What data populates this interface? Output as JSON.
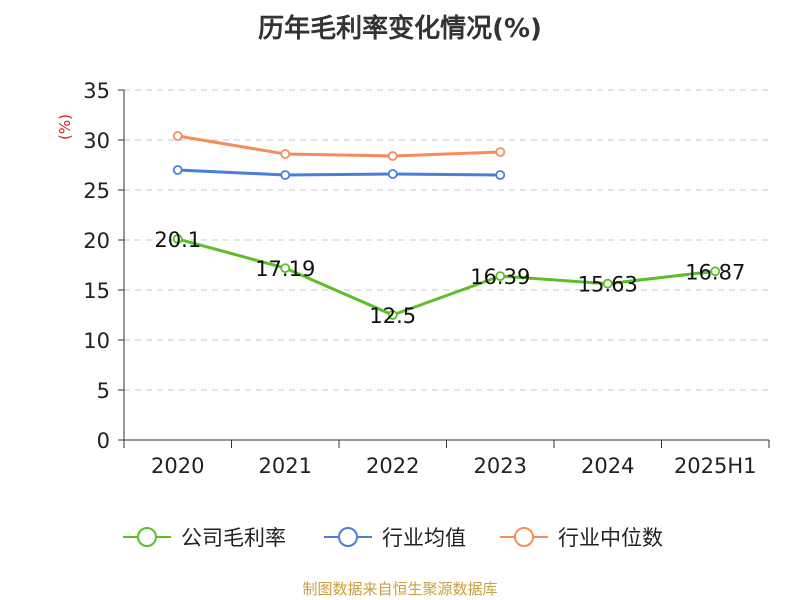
{
  "chart_data": {
    "type": "line",
    "title": "历年毛利率变化情况(%)",
    "ylabel": "(%)",
    "xlabel": "",
    "categories": [
      "2020",
      "2021",
      "2022",
      "2023",
      "2024",
      "2025H1"
    ],
    "ylim": [
      0,
      35
    ],
    "yticks": [
      0,
      5,
      10,
      15,
      20,
      25,
      30,
      35
    ],
    "grid": true,
    "legend_position": "bottom",
    "series": [
      {
        "name": "公司毛利率",
        "color": "#5cbf2a",
        "values": [
          20.1,
          17.19,
          12.5,
          16.39,
          15.63,
          16.87
        ],
        "labels": [
          "20.1",
          "17.19",
          "12.5",
          "16.39",
          "15.63",
          "16.87"
        ]
      },
      {
        "name": "行业均值",
        "color": "#4a7fd8",
        "values": [
          27.0,
          26.5,
          26.6,
          26.5,
          null,
          null
        ]
      },
      {
        "name": "行业中位数",
        "color": "#f58d5a",
        "values": [
          30.4,
          28.6,
          28.4,
          28.8,
          null,
          null
        ]
      }
    ]
  },
  "source_note": "制图数据来自恒生聚源数据库"
}
